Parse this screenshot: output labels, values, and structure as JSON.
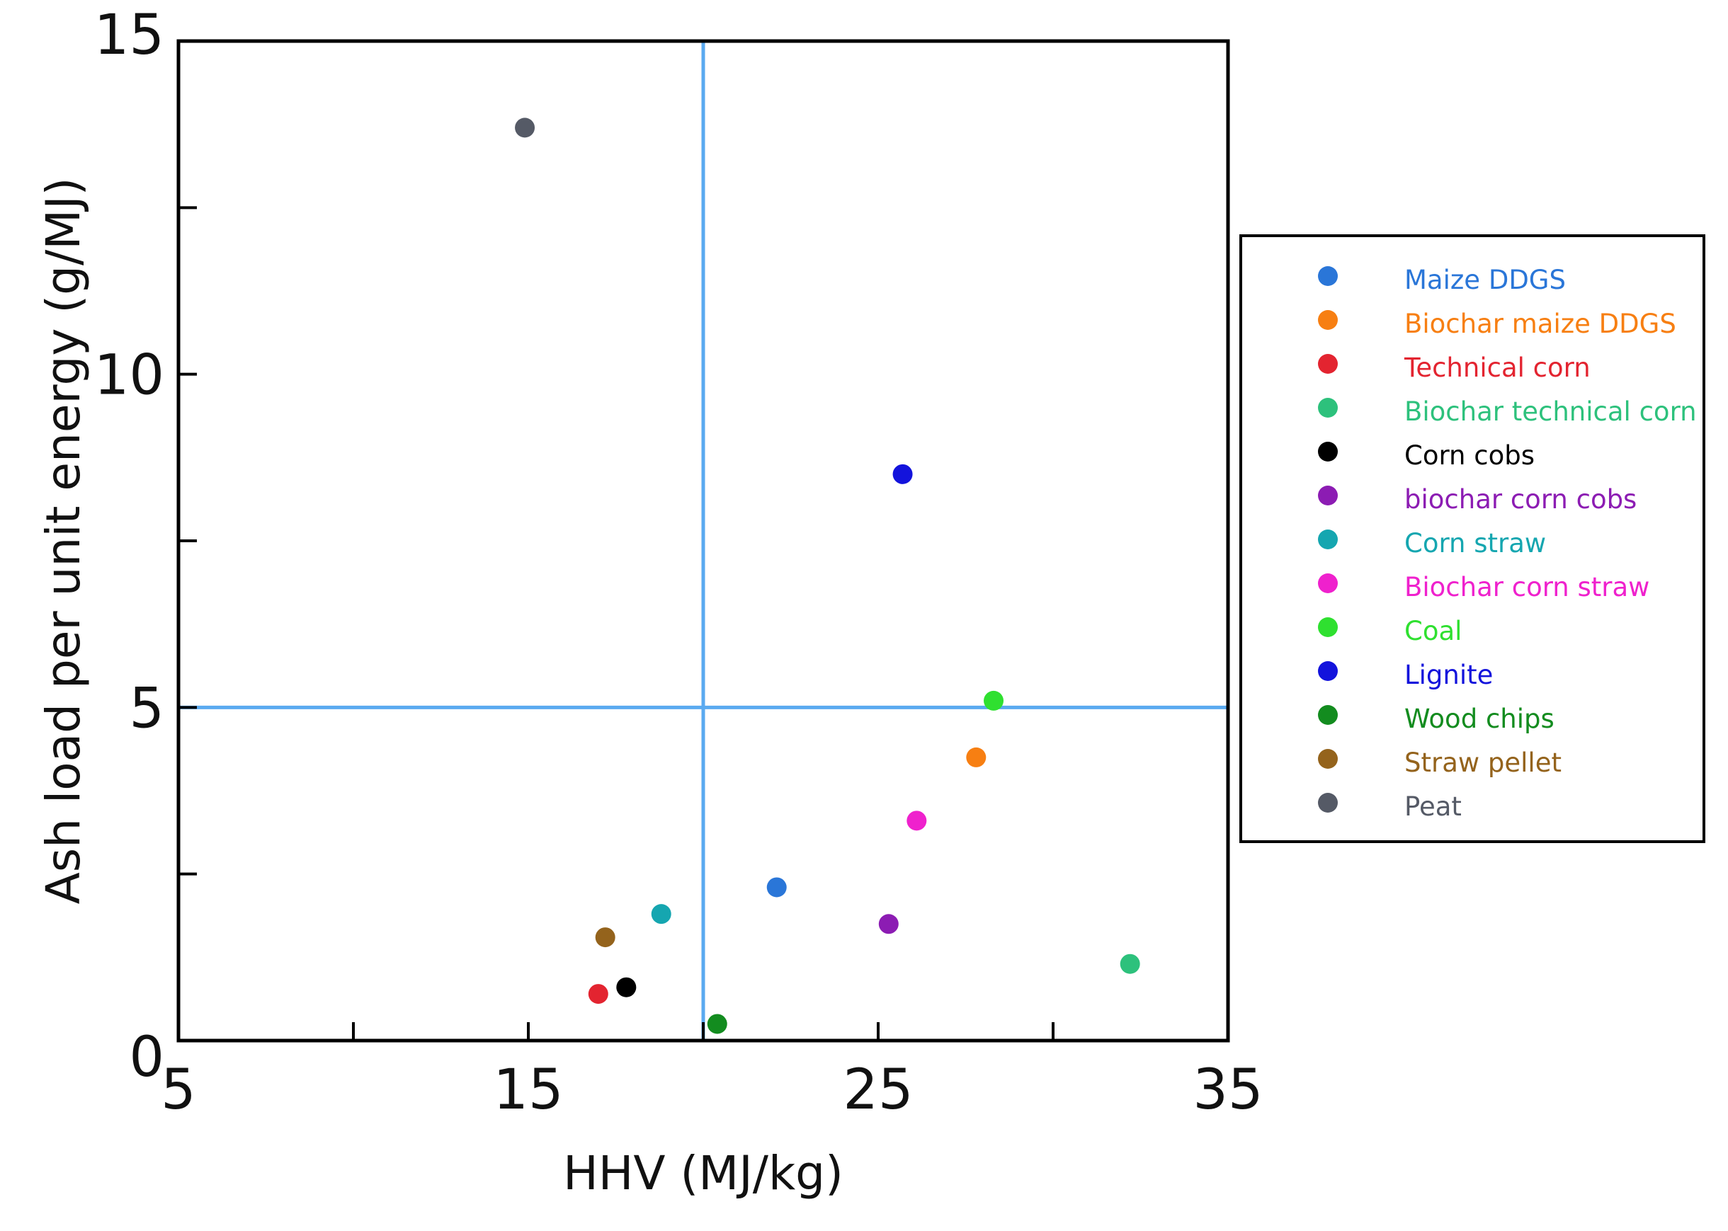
{
  "chart_data": {
    "type": "scatter",
    "xlabel": "HHV (MJ/kg)",
    "ylabel": "Ash load per unit energy  (g/MJ)",
    "xlim": [
      5,
      35
    ],
    "ylim": [
      0,
      15
    ],
    "x_ticks": [
      "5",
      "15",
      "25",
      "35"
    ],
    "y_ticks": [
      "0",
      "5",
      "10",
      "15"
    ],
    "reference_lines": {
      "x": 20,
      "y": 5,
      "color": "#5aaaf0"
    },
    "legend_position": "right",
    "series": [
      {
        "name": "Maize DDGS",
        "color": "#2a76d8",
        "x": [
          22.1
        ],
        "y": [
          2.3
        ]
      },
      {
        "name": "Biochar maize DDGS",
        "color": "#f77f12",
        "x": [
          27.8
        ],
        "y": [
          4.25
        ]
      },
      {
        "name": "Technical corn",
        "color": "#e32430",
        "x": [
          17.0
        ],
        "y": [
          0.7
        ]
      },
      {
        "name": "Biochar technical corn",
        "color": "#2dc17c",
        "x": [
          32.2
        ],
        "y": [
          1.15
        ]
      },
      {
        "name": "Corn cobs",
        "color": "#000000",
        "x": [
          17.8
        ],
        "y": [
          0.8
        ]
      },
      {
        "name": "biochar corn cobs",
        "color": "#8c1cb3",
        "x": [
          25.3
        ],
        "y": [
          1.75
        ]
      },
      {
        "name": "Corn straw",
        "color": "#15a6b0",
        "x": [
          18.8
        ],
        "y": [
          1.9
        ]
      },
      {
        "name": "Biochar corn straw",
        "color": "#ef21cd",
        "x": [
          26.1
        ],
        "y": [
          3.3
        ]
      },
      {
        "name": "Coal",
        "color": "#2fe030",
        "x": [
          28.3
        ],
        "y": [
          5.1
        ]
      },
      {
        "name": "Lignite",
        "color": "#1313dc",
        "x": [
          25.7
        ],
        "y": [
          8.5
        ]
      },
      {
        "name": "Wood chips",
        "color": "#138c1f",
        "x": [
          20.4
        ],
        "y": [
          0.25
        ]
      },
      {
        "name": "Straw pellet",
        "color": "#94631c",
        "x": [
          17.2
        ],
        "y": [
          1.55
        ]
      },
      {
        "name": "Peat",
        "color": "#555a66",
        "x": [
          14.9
        ],
        "y": [
          13.7
        ]
      }
    ]
  }
}
